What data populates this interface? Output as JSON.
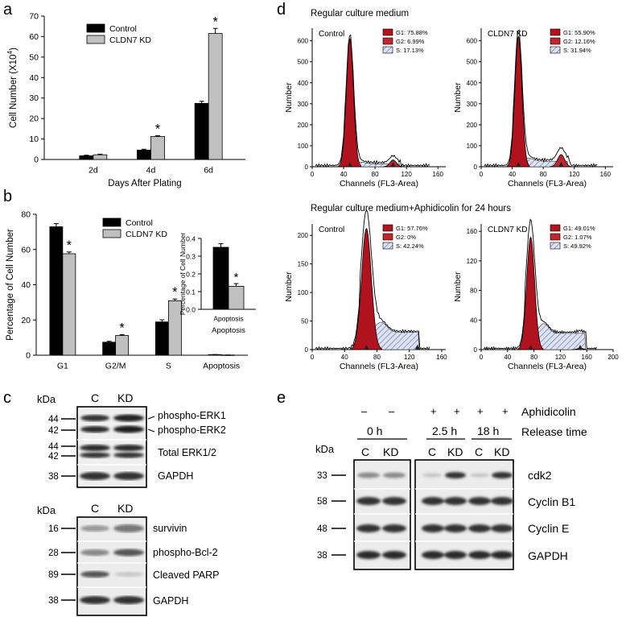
{
  "panel_letters": {
    "a": "a",
    "b": "b",
    "c": "c",
    "d": "d",
    "e": "e"
  },
  "colors": {
    "control": "#000000",
    "kd": "#c0c0c0",
    "g1": "#b0131e",
    "g2": "#c0262c",
    "s_fill": "#7f8fbf"
  },
  "chart_data": [
    {
      "id": "a",
      "type": "bar",
      "ylabel": "Cell Number (X10",
      "ylabel_sup": "4",
      "ylabel_close": ")",
      "xlabel": "Days After Plating",
      "ylim": [
        0,
        70
      ],
      "yticks": [
        "0",
        "10",
        "20",
        "30",
        "40",
        "50",
        "60",
        "70"
      ],
      "categories": [
        "2d",
        "4d",
        "6d"
      ],
      "series": [
        {
          "name": "Control",
          "values": [
            1.8,
            4.6,
            27.4
          ],
          "errors": [
            0.3,
            0.4,
            1.0
          ]
        },
        {
          "name": "CLDN7 KD",
          "values": [
            2.3,
            11.2,
            61.5
          ],
          "errors": [
            0.3,
            0.4,
            2.5
          ]
        }
      ],
      "significance": [
        "",
        "*",
        "*"
      ]
    },
    {
      "id": "b",
      "type": "bar",
      "ylabel": "Percentage of Cell Number",
      "ylim": [
        0,
        80
      ],
      "yticks": [
        "0",
        "20",
        "40",
        "60",
        "80"
      ],
      "categories": [
        "G1",
        "G2/M",
        "S",
        "Apoptosis"
      ],
      "series": [
        {
          "name": "Control",
          "values": [
            72.9,
            7.4,
            18.9,
            0.35
          ],
          "errors": [
            1.8,
            0.5,
            1.2,
            0.02
          ]
        },
        {
          "name": "CLDN7 KD",
          "values": [
            57.6,
            11.2,
            30.9,
            0.13
          ],
          "errors": [
            1.0,
            0.5,
            1.0,
            0.02
          ]
        }
      ],
      "significance": [
        "*",
        "*",
        "*",
        ""
      ]
    },
    {
      "id": "b-inset",
      "type": "bar",
      "ylabel": "Percentage of Cell Number",
      "xlabel": "Apoptosis",
      "ylim": [
        0,
        0.4
      ],
      "yticks": [
        "0.0",
        "0.1",
        "0.2",
        "0.3",
        "0.4"
      ],
      "categories": [
        "Apoptosis"
      ],
      "series": [
        {
          "name": "Control",
          "values": [
            0.35
          ],
          "errors": [
            0.02
          ]
        },
        {
          "name": "CLDN7 KD",
          "values": [
            0.13
          ],
          "errors": [
            0.015
          ]
        }
      ],
      "significance": [
        "*"
      ]
    }
  ],
  "panel_d": {
    "title_top": "Regular culture medium",
    "title_bottom": "Regular culture medium+Aphidicolin for 24 hours",
    "xlabel": "Channels (FL3-Area)",
    "ylabel": "Number",
    "histograms": [
      {
        "label": "Control",
        "legend": [
          "G1: 75.88%",
          "G2: 6.99%",
          "S: 17.13%"
        ],
        "yticks": [
          "0",
          "100",
          "200",
          "300",
          "400",
          "500",
          "600"
        ],
        "xticks": [
          "0",
          "40",
          "80",
          "120",
          "160"
        ]
      },
      {
        "label": "CLDN7 KD",
        "legend": [
          "G1: 55.90%",
          "G2: 12.16%",
          "S: 31.94%"
        ],
        "yticks": [
          "0",
          "100",
          "200",
          "300",
          "400",
          "500",
          "600"
        ],
        "xticks": [
          "0",
          "40",
          "80",
          "120",
          "160"
        ]
      },
      {
        "label": "Control",
        "legend": [
          "G1: 57.76%",
          "G2: 0%",
          "S: 42.24%"
        ],
        "yticks": [
          "0",
          "50",
          "100",
          "150",
          "200"
        ],
        "xticks": [
          "0",
          "40",
          "80",
          "120",
          "160"
        ]
      },
      {
        "label": "CLDN7 KD",
        "legend": [
          "G1: 49.01%",
          "G2: 1.07%",
          "S: 49.92%"
        ],
        "yticks": [
          "0",
          "40",
          "80",
          "120",
          "160"
        ],
        "xticks": [
          "0",
          "40",
          "80",
          "120",
          "160",
          "200"
        ]
      }
    ]
  },
  "panel_c": {
    "kda": "kDa",
    "lanes": [
      "C",
      "KD"
    ],
    "top_markers": [
      "44",
      "42",
      "44",
      "42",
      "38"
    ],
    "top_labels": [
      "phospho-ERK1",
      "phospho-ERK2",
      "Total ERK1/2",
      "GAPDH"
    ],
    "bottom_markers": [
      "16",
      "28",
      "89",
      "38"
    ],
    "bottom_labels": [
      "survivin",
      "phospho-Bcl-2",
      "Cleaved PARP",
      "GAPDH"
    ]
  },
  "panel_e": {
    "kda": "kDa",
    "aphidicolin_label": "Aphidicolin",
    "release_label": "Release time",
    "signs": [
      "–",
      "–",
      "+",
      "+",
      "+",
      "+"
    ],
    "times": [
      "0 h",
      "2.5 h",
      "18 h"
    ],
    "lanes": [
      "C",
      "KD",
      "C",
      "KD",
      "C",
      "KD"
    ],
    "markers": [
      "33",
      "58",
      "48",
      "38"
    ],
    "labels": [
      "cdk2",
      "Cyclin B1",
      "Cyclin E",
      "GAPDH"
    ]
  }
}
